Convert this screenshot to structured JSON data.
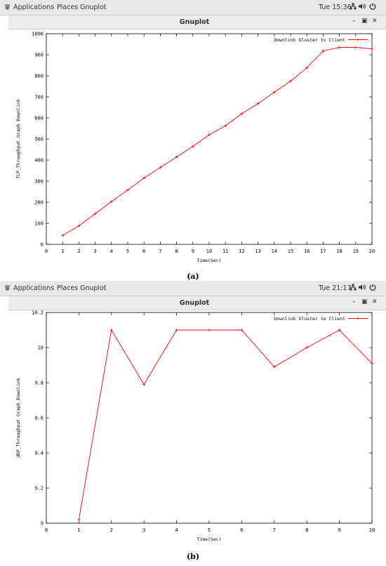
{
  "topbar_a": {
    "applications": "Applications",
    "places": "Places",
    "app": "Gnuplot",
    "clock": "Tue 15:36"
  },
  "topbar_b": {
    "applications": "Applications",
    "places": "Places",
    "app": "Gnuplot",
    "clock": "Tue 21:17"
  },
  "window_a": {
    "title": "Gnuplot"
  },
  "window_b": {
    "title": "Gnuplot"
  },
  "icons": [
    "gnome-foot-icon",
    "network-icon",
    "volume-icon",
    "power-icon",
    "minimize-icon",
    "maximize-icon",
    "close-icon"
  ],
  "caption_a": "(a)",
  "caption_b": "(b)",
  "chart_data": [
    {
      "type": "line",
      "title": "",
      "xlabel": "Time(Sec)",
      "ylabel": "TCP_Throughput Graph Downlink",
      "xlim": [
        0,
        20
      ],
      "ylim": [
        0,
        1000
      ],
      "xticks": [
        0,
        1,
        2,
        3,
        4,
        5,
        6,
        7,
        8,
        9,
        10,
        11,
        12,
        13,
        14,
        15,
        16,
        17,
        18,
        19,
        20
      ],
      "yticks": [
        0,
        100,
        200,
        300,
        400,
        500,
        600,
        700,
        800,
        900,
        1000
      ],
      "grid": false,
      "legend": "top-right",
      "color": "#ff0000",
      "series": [
        {
          "name": "Downlink Gluster to Client",
          "x": [
            1,
            2,
            3,
            4,
            5,
            6,
            7,
            8,
            9,
            10,
            11,
            12,
            13,
            14,
            15,
            16,
            17,
            18,
            19,
            20
          ],
          "y": [
            42,
            88,
            145,
            203,
            258,
            315,
            365,
            415,
            465,
            520,
            563,
            620,
            668,
            722,
            775,
            838,
            918,
            935,
            935,
            928
          ]
        }
      ]
    },
    {
      "type": "line",
      "title": "",
      "xlabel": "Time(Sec)",
      "ylabel": "UDP_Throughput Graph Downlink",
      "xlim": [
        0,
        10
      ],
      "ylim": [
        9,
        10.2
      ],
      "xticks": [
        0,
        1,
        2,
        3,
        4,
        5,
        6,
        7,
        8,
        9,
        10
      ],
      "yticks": [
        9,
        9.2,
        9.4,
        9.6,
        9.8,
        10,
        10.2
      ],
      "grid": false,
      "legend": "top-right",
      "color": "#ff0000",
      "series": [
        {
          "name": "Downlink Gluster to Client",
          "x": [
            1,
            2,
            3,
            4,
            5,
            6,
            7,
            8,
            9,
            10
          ],
          "y": [
            9.02,
            10.1,
            9.79,
            10.1,
            10.1,
            10.1,
            9.89,
            10.0,
            10.1,
            9.91
          ]
        }
      ]
    }
  ]
}
